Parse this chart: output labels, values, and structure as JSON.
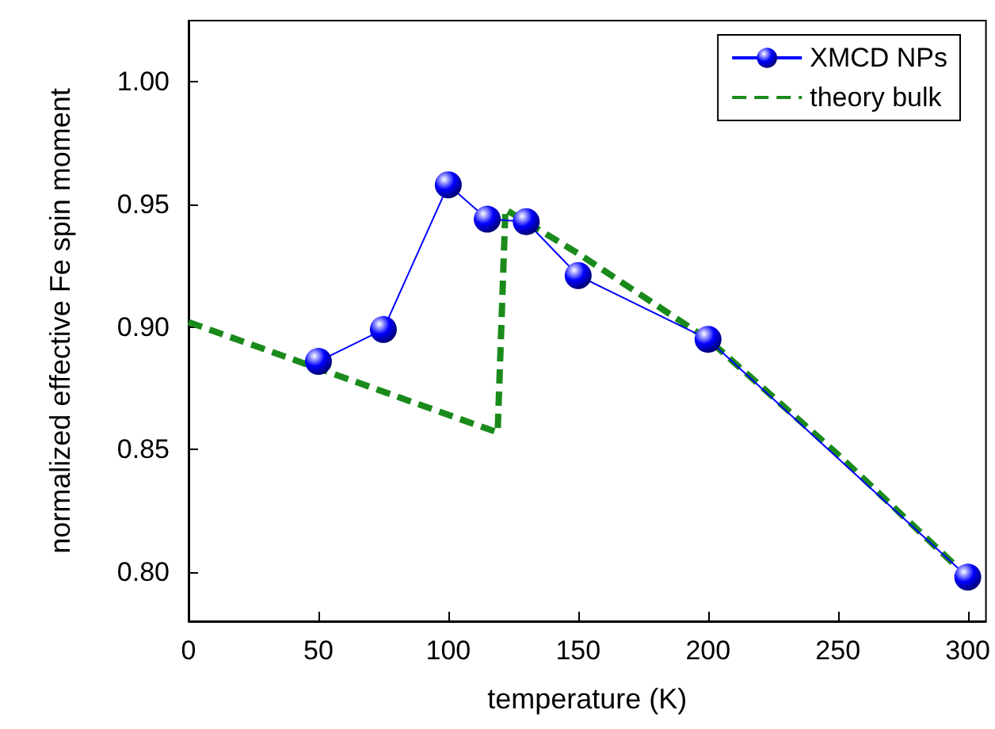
{
  "chart_data": {
    "type": "line",
    "xlabel": "temperature (K)",
    "ylabel": "normalized effective Fe spin moment",
    "xlim": [
      0,
      307
    ],
    "xticks": [
      0,
      50,
      100,
      150,
      200,
      250,
      300
    ],
    "ylim": [
      0.78,
      1.025
    ],
    "yticks": [
      {
        "value": 0.8,
        "label": "0.80"
      },
      0.85,
      {
        "value": 0.9,
        "label": "0.90"
      },
      0.95,
      {
        "value": 1,
        "label": "1.00"
      }
    ],
    "grid": false,
    "legend": "top right",
    "series": [
      {
        "name": "XMCD NPs",
        "color": "#0000ff",
        "marker": "circle",
        "line_style": "solid",
        "x": [
          50,
          75,
          100,
          115,
          130,
          150,
          200,
          300
        ],
        "values": [
          0.886,
          0.899,
          0.958,
          0.944,
          0.943,
          0.921,
          0.895,
          0.798
        ]
      },
      {
        "name": "theory bulk",
        "color": "#1a8a1a",
        "marker": "none",
        "line_style": "dashed",
        "x": [
          0,
          119,
          122,
          150,
          200,
          250,
          300
        ],
        "values": [
          0.902,
          0.857,
          0.948,
          0.93,
          0.895,
          0.848,
          0.798
        ]
      }
    ]
  }
}
